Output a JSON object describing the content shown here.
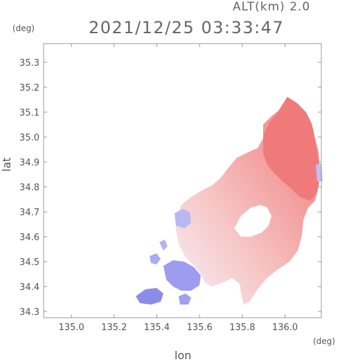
{
  "header": {
    "altitude": "ALT(km) 2.0",
    "timestamp": "2021/12/25 03:33:47"
  },
  "axes": {
    "y_unit": "(deg)",
    "x_unit": "(deg)",
    "y_label": "lat",
    "x_label": "lon"
  },
  "chart_data": {
    "type": "heatmap",
    "xlabel": "lon",
    "ylabel": "lat",
    "xlim": [
      134.87,
      136.17
    ],
    "ylim": [
      34.275,
      35.375
    ],
    "x_ticks": [
      135.0,
      135.2,
      135.4,
      135.6,
      135.8,
      136.0
    ],
    "y_ticks": [
      34.3,
      34.4,
      34.5,
      34.6,
      34.7,
      34.8,
      34.9,
      35.0,
      35.1,
      35.2,
      35.3
    ],
    "x_tick_labels": [
      "135.0",
      "135.2",
      "135.4",
      "135.6",
      "135.8",
      "136.0"
    ],
    "y_tick_labels": [
      "34.3",
      "34.4",
      "34.5",
      "34.6",
      "34.7",
      "34.8",
      "34.9",
      "35.0",
      "35.1",
      "35.2",
      "35.3"
    ],
    "grid": false,
    "colors": {
      "positive": "#f28080",
      "negative": "#8a8ae8",
      "frame": "#999999"
    }
  }
}
